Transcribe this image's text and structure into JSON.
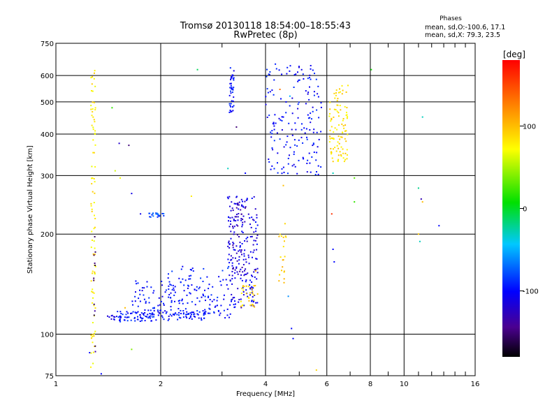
{
  "chart_data": {
    "type": "scatter",
    "title": "Tromsø 20130118 18:54:00–18:55:43",
    "subtitle": "RwPretec (8p)",
    "xlabel": "Frequency [MHz]",
    "ylabel": "Stationary phase Virtual Height [km]",
    "x_scale": "log",
    "y_scale": "log",
    "xlim": [
      1,
      16
    ],
    "ylim": [
      75,
      750
    ],
    "x_ticks": [
      1,
      2,
      4,
      6,
      8,
      10,
      16
    ],
    "x_tick_labels": [
      "1",
      "2",
      "4",
      "6",
      "8",
      "10",
      "16"
    ],
    "y_ticks": [
      75,
      100,
      200,
      300,
      400,
      500,
      600,
      750
    ],
    "y_tick_labels": [
      "75",
      "100",
      "200",
      "300",
      "400",
      "500",
      "600",
      "750"
    ],
    "grid": true,
    "stats": {
      "heading": "Phases",
      "line_o": "mean, sd,O:-100.6, 17.1",
      "line_x": "mean, sd,X: 79.3, 23.5"
    },
    "colorbar": {
      "unit_label": "[deg]",
      "range": [
        -180,
        180
      ],
      "ticks": [
        100,
        0,
        -100
      ],
      "tick_labels": [
        "100",
        "0",
        "-100"
      ]
    },
    "point_groups": [
      {
        "f_range": [
          1.26,
          1.3
        ],
        "h_range": [
          78,
          640
        ],
        "phase": 80,
        "count": 90
      },
      {
        "f_range": [
          1.28,
          1.3
        ],
        "h_range": [
          80,
          200
        ],
        "phase": -150,
        "count": 12
      },
      {
        "f_range": [
          1.4,
          1.5
        ],
        "h_range": [
          110,
          114
        ],
        "phase": -110,
        "count": 10
      },
      {
        "f_range": [
          1.5,
          1.95
        ],
        "h_range": [
          109,
          117
        ],
        "phase": -95,
        "count": 60
      },
      {
        "f_range": [
          1.65,
          2.2
        ],
        "h_range": [
          112,
          145
        ],
        "phase": -100,
        "count": 80
      },
      {
        "f_range": [
          1.95,
          2.7
        ],
        "h_range": [
          110,
          118
        ],
        "phase": -100,
        "count": 55
      },
      {
        "f_range": [
          2.1,
          3.2
        ],
        "h_range": [
          112,
          160
        ],
        "phase": -95,
        "count": 120
      },
      {
        "f_range": [
          3.1,
          3.8
        ],
        "h_range": [
          120,
          260
        ],
        "phase": -110,
        "count": 200
      },
      {
        "f_range": [
          3.2,
          3.5
        ],
        "h_range": [
          150,
          250
        ],
        "phase": -130,
        "count": 40
      },
      {
        "f_range": [
          3.4,
          3.8
        ],
        "h_range": [
          120,
          140
        ],
        "phase": 90,
        "count": 30
      },
      {
        "f_range": [
          1.85,
          2.05
        ],
        "h_range": [
          225,
          232
        ],
        "phase": -80,
        "count": 20
      },
      {
        "f_range": [
          3.15,
          3.25
        ],
        "h_range": [
          450,
          640
        ],
        "phase": -100,
        "count": 40
      },
      {
        "f_range": [
          4.0,
          5.8
        ],
        "h_range": [
          300,
          650
        ],
        "phase": -100,
        "count": 170
      },
      {
        "f_range": [
          6.1,
          6.9
        ],
        "h_range": [
          330,
          560
        ],
        "phase": 85,
        "count": 100
      },
      {
        "f_range": [
          4.3,
          4.6
        ],
        "h_range": [
          140,
          200
        ],
        "phase": 95,
        "count": 20
      }
    ],
    "scattered_points": [
      {
        "x": 1.25,
        "y": 88,
        "phase": -100
      },
      {
        "x": 1.35,
        "y": 76,
        "phase": -100
      },
      {
        "x": 1.45,
        "y": 480,
        "phase": 20
      },
      {
        "x": 1.48,
        "y": 310,
        "phase": 60
      },
      {
        "x": 1.52,
        "y": 375,
        "phase": -120
      },
      {
        "x": 1.53,
        "y": 295,
        "phase": 70
      },
      {
        "x": 1.58,
        "y": 120,
        "phase": 100
      },
      {
        "x": 1.62,
        "y": 370,
        "phase": -150
      },
      {
        "x": 1.65,
        "y": 265,
        "phase": -110
      },
      {
        "x": 1.65,
        "y": 90,
        "phase": 40
      },
      {
        "x": 1.75,
        "y": 230,
        "phase": -110
      },
      {
        "x": 2.45,
        "y": 260,
        "phase": 80
      },
      {
        "x": 2.55,
        "y": 625,
        "phase": -10
      },
      {
        "x": 3.3,
        "y": 420,
        "phase": -150
      },
      {
        "x": 3.12,
        "y": 315,
        "phase": -30
      },
      {
        "x": 3.5,
        "y": 305,
        "phase": -100
      },
      {
        "x": 3.75,
        "y": 155,
        "phase": 110
      },
      {
        "x": 4.45,
        "y": 605,
        "phase": -100
      },
      {
        "x": 4.5,
        "y": 450,
        "phase": -100
      },
      {
        "x": 4.4,
        "y": 545,
        "phase": 130
      },
      {
        "x": 4.7,
        "y": 520,
        "phase": -50
      },
      {
        "x": 4.5,
        "y": 280,
        "phase": 100
      },
      {
        "x": 4.55,
        "y": 215,
        "phase": 90
      },
      {
        "x": 4.65,
        "y": 130,
        "phase": -60
      },
      {
        "x": 4.75,
        "y": 104,
        "phase": -100
      },
      {
        "x": 4.8,
        "y": 97,
        "phase": -100
      },
      {
        "x": 5.6,
        "y": 78,
        "phase": 90
      },
      {
        "x": 6.2,
        "y": 230,
        "phase": 160
      },
      {
        "x": 6.25,
        "y": 180,
        "phase": -100
      },
      {
        "x": 6.3,
        "y": 165,
        "phase": -100
      },
      {
        "x": 6.25,
        "y": 305,
        "phase": -30
      },
      {
        "x": 6.9,
        "y": 560,
        "phase": 80
      },
      {
        "x": 7.2,
        "y": 295,
        "phase": 30
      },
      {
        "x": 7.2,
        "y": 250,
        "phase": 20
      },
      {
        "x": 8.05,
        "y": 625,
        "phase": 10
      },
      {
        "x": 11.0,
        "y": 275,
        "phase": -20
      },
      {
        "x": 11.0,
        "y": 200,
        "phase": 95
      },
      {
        "x": 11.1,
        "y": 190,
        "phase": -30
      },
      {
        "x": 11.2,
        "y": 255,
        "phase": -130
      },
      {
        "x": 11.3,
        "y": 450,
        "phase": -30
      },
      {
        "x": 12.6,
        "y": 212,
        "phase": -100
      },
      {
        "x": 11.3,
        "y": 250,
        "phase": 100
      }
    ]
  }
}
